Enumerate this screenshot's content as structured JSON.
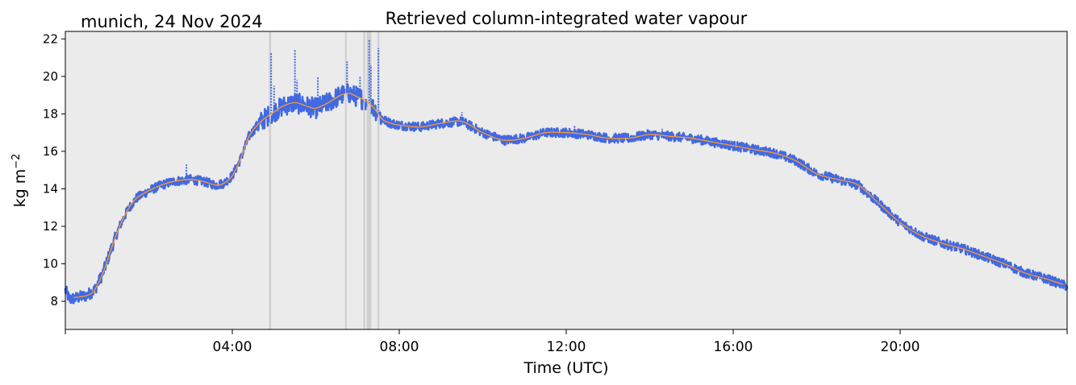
{
  "figure": {
    "location_date": "munich, 24 Nov 2024",
    "title": "Retrieved column-integrated water vapour",
    "xlabel": "Time (UTC)",
    "ylabel_main": "kg m",
    "ylabel_exponent": "−2"
  },
  "colors": {
    "background": "#ebebeb",
    "raw_series": "#4169e1",
    "smoothed_series": "#ff9933",
    "gap_shading": "#cccccc"
  },
  "chart_data": {
    "type": "line",
    "title": "Retrieved column-integrated water vapour",
    "xlabel": "Time (UTC)",
    "ylabel": "kg m−2",
    "xlim": [
      0,
      24
    ],
    "ylim": [
      6.5,
      22.4
    ],
    "x_unit": "hours UTC",
    "x_ticks": [
      {
        "value": 4,
        "label": "04:00"
      },
      {
        "value": 8,
        "label": "08:00"
      },
      {
        "value": 12,
        "label": "12:00"
      },
      {
        "value": 16,
        "label": "16:00"
      },
      {
        "value": 20,
        "label": "20:00"
      }
    ],
    "y_ticks": [
      {
        "value": 8,
        "label": "8"
      },
      {
        "value": 10,
        "label": "10"
      },
      {
        "value": 12,
        "label": "12"
      },
      {
        "value": 14,
        "label": "14"
      },
      {
        "value": 16,
        "label": "16"
      },
      {
        "value": 18,
        "label": "18"
      },
      {
        "value": 20,
        "label": "20"
      },
      {
        "value": 22,
        "label": "22"
      }
    ],
    "grid": false,
    "legend": false,
    "gaps": [
      [
        4.88,
        4.93
      ],
      [
        6.7,
        6.74
      ],
      [
        7.14,
        7.18
      ],
      [
        7.22,
        7.33
      ],
      [
        7.48,
        7.52
      ]
    ],
    "series": [
      {
        "kind": "raw",
        "noise": 0.25,
        "spikes": [
          {
            "x": 4.93,
            "y": 21.3
          },
          {
            "x": 5.0,
            "y": 19.5
          },
          {
            "x": 5.5,
            "y": 21.4
          },
          {
            "x": 5.55,
            "y": 19.8
          },
          {
            "x": 6.05,
            "y": 20.0
          },
          {
            "x": 6.75,
            "y": 20.8
          },
          {
            "x": 7.06,
            "y": 20.0
          },
          {
            "x": 7.28,
            "y": 22.0
          },
          {
            "x": 7.32,
            "y": 20.6
          },
          {
            "x": 7.5,
            "y": 21.5
          },
          {
            "x": 9.5,
            "y": 18.1
          },
          {
            "x": 12.2,
            "y": 17.4
          },
          {
            "x": 14.3,
            "y": 17.2
          },
          {
            "x": 2.9,
            "y": 15.3
          }
        ],
        "x": [
          0,
          0.1,
          0.3,
          0.5,
          0.7,
          0.9,
          1.1,
          1.3,
          1.5,
          1.7,
          2.0,
          2.3,
          2.6,
          3.0,
          3.3,
          3.6,
          3.8,
          4.0,
          4.2,
          4.4,
          4.6,
          4.8,
          5.0,
          5.2,
          5.5,
          5.8,
          6.0,
          6.3,
          6.6,
          6.8,
          7.0,
          7.2,
          7.4,
          7.6,
          7.8,
          8.0,
          8.5,
          9.0,
          9.5,
          10.0,
          10.5,
          11.0,
          11.5,
          12.0,
          12.5,
          13.0,
          13.5,
          14.0,
          14.5,
          15.0,
          15.5,
          16.0,
          16.5,
          17.0,
          17.5,
          18.0,
          18.5,
          19.0,
          19.5,
          20.0,
          20.5,
          21.0,
          21.5,
          22.0,
          22.5,
          23.0,
          23.5,
          24.0
        ],
        "y": [
          8.6,
          8.1,
          8.2,
          8.3,
          8.6,
          9.5,
          10.8,
          12.0,
          12.9,
          13.5,
          13.9,
          14.2,
          14.4,
          14.5,
          14.4,
          14.2,
          14.3,
          14.7,
          15.6,
          16.8,
          17.4,
          17.8,
          18.1,
          18.4,
          18.6,
          18.4,
          18.3,
          18.6,
          19.0,
          19.1,
          18.9,
          18.7,
          18.3,
          17.7,
          17.5,
          17.4,
          17.3,
          17.5,
          17.6,
          17.0,
          16.6,
          16.7,
          17.0,
          17.0,
          16.9,
          16.7,
          16.7,
          16.9,
          16.8,
          16.7,
          16.5,
          16.3,
          16.1,
          15.9,
          15.5,
          14.8,
          14.5,
          14.2,
          13.2,
          12.2,
          11.5,
          11.1,
          10.8,
          10.4,
          10.0,
          9.5,
          9.2,
          8.8
        ]
      },
      {
        "kind": "smoothed",
        "x": [
          0.2,
          0.5,
          0.7,
          0.9,
          1.1,
          1.3,
          1.5,
          1.7,
          2.0,
          2.3,
          2.6,
          3.0,
          3.3,
          3.6,
          3.8,
          4.0,
          4.2,
          4.4,
          4.6,
          4.8,
          5.0,
          5.2,
          5.5,
          5.8,
          6.0,
          6.3,
          6.6,
          6.8,
          7.0,
          7.2,
          7.4,
          7.6,
          7.8,
          8.0,
          8.5,
          9.0,
          9.5,
          10.0,
          10.5,
          11.0,
          11.5,
          12.0,
          12.5,
          13.0,
          13.5,
          14.0,
          14.5,
          15.0,
          15.5,
          16.0,
          16.5,
          17.0,
          17.5,
          18.0,
          18.5,
          19.0,
          19.5,
          20.0,
          20.5,
          21.0,
          21.5,
          22.0,
          22.5,
          23.0,
          23.5,
          23.9
        ],
        "y": [
          8.2,
          8.3,
          8.6,
          9.5,
          10.8,
          12.0,
          12.9,
          13.5,
          13.9,
          14.2,
          14.4,
          14.5,
          14.4,
          14.2,
          14.3,
          14.7,
          15.6,
          16.8,
          17.4,
          17.8,
          18.1,
          18.4,
          18.6,
          18.4,
          18.3,
          18.6,
          19.0,
          19.1,
          18.9,
          18.7,
          18.3,
          17.7,
          17.5,
          17.4,
          17.3,
          17.5,
          17.6,
          17.0,
          16.6,
          16.7,
          17.0,
          17.0,
          16.9,
          16.7,
          16.7,
          16.9,
          16.8,
          16.7,
          16.5,
          16.3,
          16.1,
          15.9,
          15.5,
          14.8,
          14.5,
          14.2,
          13.2,
          12.2,
          11.5,
          11.1,
          10.8,
          10.4,
          10.0,
          9.5,
          9.2,
          8.9
        ]
      }
    ]
  }
}
